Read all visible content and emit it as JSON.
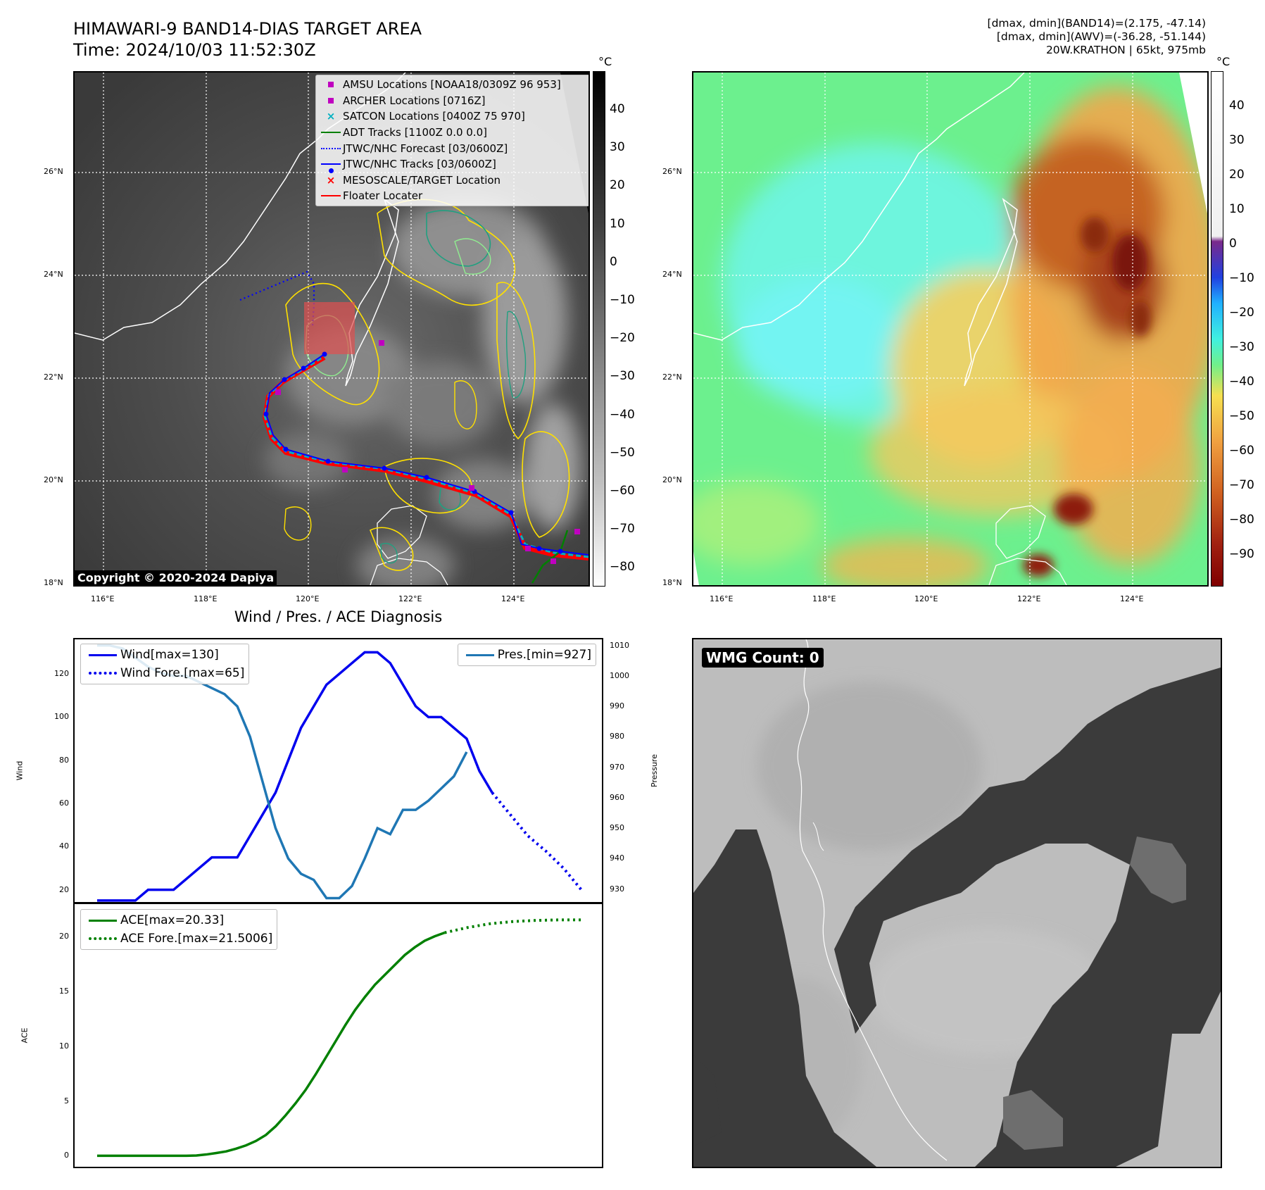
{
  "header": {
    "title_line1": "HIMAWARI-9 BAND14-DIAS TARGET AREA",
    "title_line2": "Time: 2024/10/03 11:52:30Z",
    "info_line1": "[dmax, dmin](BAND14)=(2.175, -47.14)",
    "info_line2": "[dmax, dmin](AWV)=(-36.28, -51.144)",
    "info_line3": "20W.KRATHON | 65kt, 975mb"
  },
  "map_axes": {
    "lon_labels": [
      "116°E",
      "118°E",
      "120°E",
      "122°E",
      "124°E"
    ],
    "lat_labels": [
      "26°N",
      "24°N",
      "22°N",
      "20°N",
      "18°N"
    ]
  },
  "colorbar_left": {
    "unit": "°C",
    "ticks": [
      "40",
      "30",
      "20",
      "10",
      "0",
      "−10",
      "−20",
      "−30",
      "−40",
      "−50",
      "−60",
      "−70",
      "−80"
    ]
  },
  "colorbar_right": {
    "unit": "°C",
    "ticks": [
      "40",
      "30",
      "20",
      "10",
      "0",
      "−10",
      "−20",
      "−30",
      "−40",
      "−50",
      "−60",
      "−70",
      "−80",
      "−90"
    ]
  },
  "legend_map": {
    "items": [
      {
        "label": "AMSU Locations [NOAA18/0309Z 96 953]",
        "symbol": "square",
        "color": "#c000c0"
      },
      {
        "label": "ARCHER Locations [0716Z]",
        "symbol": "square",
        "color": "#c000c0"
      },
      {
        "label": "SATCON Locations [0400Z 75 970]",
        "symbol": "x",
        "color": "#00b0c0"
      },
      {
        "label": "ADT Tracks [1100Z 0.0 0.0]",
        "symbol": "line",
        "color": "#008000"
      },
      {
        "label": "JTWC/NHC Forecast [03/0600Z]",
        "symbol": "dotted",
        "color": "#0000ff"
      },
      {
        "label": "JTWC/NHC Tracks [03/0600Z]",
        "symbol": "linedot",
        "color": "#0000ff"
      },
      {
        "label": "MESOSCALE/TARGET Location",
        "symbol": "x",
        "color": "#ff0000"
      },
      {
        "label": "Floater Locater",
        "symbol": "line",
        "color": "#ff0000"
      }
    ]
  },
  "copyright": "Copyright © 2020-2024 Dapiya",
  "wmg_label": "WMG Count: 0",
  "chart_data": [
    {
      "type": "line",
      "title": "Wind / Pres. / ACE Diagnosis",
      "ylabel": "Wind",
      "y2label": "Pressure",
      "ylim": [
        14,
        136
      ],
      "y2lim": [
        925.5,
        1012
      ],
      "yticks": [
        20,
        40,
        60,
        80,
        100,
        120
      ],
      "y2ticks": [
        930,
        940,
        950,
        960,
        970,
        980,
        990,
        1000,
        1010
      ],
      "series": [
        {
          "name": "Wind[max=130]",
          "color": "#0000ee",
          "style": "solid",
          "values": [
            15,
            15,
            15,
            15,
            20,
            20,
            20,
            25,
            30,
            35,
            35,
            35,
            45,
            55,
            65,
            80,
            95,
            105,
            115,
            120,
            125,
            130,
            130,
            125,
            115,
            105,
            100,
            100,
            95,
            90,
            75,
            65
          ]
        },
        {
          "name": "Wind Fore.[max=65]",
          "color": "#0000ee",
          "style": "dotted",
          "values": [
            65,
            55,
            45,
            38,
            30,
            20
          ]
        },
        {
          "name": "Pres.[min=927]",
          "color": "#1f77b4",
          "style": "solid",
          "values": [
            1010,
            1010,
            1009,
            1006,
            1003,
            1001,
            1000,
            1000,
            998,
            996,
            994,
            990,
            980,
            965,
            950,
            940,
            935,
            933,
            927,
            927,
            931,
            940,
            950,
            948,
            956,
            956,
            959,
            963,
            967,
            975
          ]
        }
      ]
    },
    {
      "type": "line",
      "ylabel": "ACE",
      "ylim": [
        -1,
        23
      ],
      "yticks": [
        0,
        5,
        10,
        15,
        20
      ],
      "series": [
        {
          "name": "ACE[max=20.33]",
          "color": "#008000",
          "style": "solid",
          "values": [
            0,
            0,
            0,
            0,
            0,
            0,
            0,
            0,
            0,
            0,
            0.03,
            0.12,
            0.25,
            0.4,
            0.65,
            0.95,
            1.35,
            1.9,
            2.7,
            3.7,
            4.8,
            6.0,
            7.4,
            8.9,
            10.4,
            11.9,
            13.3,
            14.5,
            15.6,
            16.5,
            17.4,
            18.3,
            19.0,
            19.6,
            20.0,
            20.33
          ]
        },
        {
          "name": "ACE Fore.[max=21.5006]",
          "color": "#008000",
          "style": "dotted",
          "values": [
            20.33,
            20.8,
            21.15,
            21.35,
            21.45,
            21.5,
            21.5006
          ]
        }
      ]
    }
  ]
}
